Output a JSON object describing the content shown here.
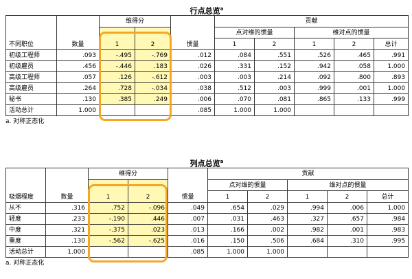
{
  "row_table": {
    "title": "行点总览",
    "title_sup": "a",
    "header": {
      "row_var": "不同职位",
      "mass": "数量",
      "score_group": "维得分",
      "dim1": "1",
      "dim2": "2",
      "inertia": "惯量",
      "contribution_group": "贡献",
      "point_to_dim": "点对维的惯量",
      "dim_to_point": "维对点的惯量",
      "total": "总计"
    },
    "rows": [
      {
        "label": "初级工程师",
        "mass": ".093",
        "s1": "-.495",
        "s2": "-.769",
        "inertia": ".012",
        "p1": ".084",
        "p2": ".551",
        "d1": ".526",
        "d2": ".465",
        "total": ".991"
      },
      {
        "label": "初级雇员",
        "mass": ".456",
        "s1": "-.446",
        "s2": ".183",
        "inertia": ".026",
        "p1": ".331",
        "p2": ".152",
        "d1": ".942",
        "d2": ".058",
        "total": "1.000"
      },
      {
        "label": "高级工程师",
        "mass": ".057",
        "s1": ".126",
        "s2": "-.612",
        "inertia": ".003",
        "p1": ".003",
        "p2": ".214",
        "d1": ".092",
        "d2": ".800",
        "total": ".893"
      },
      {
        "label": "高级雇员",
        "mass": ".264",
        "s1": ".728",
        "s2": "-.034",
        "inertia": ".038",
        "p1": ".512",
        "p2": ".003",
        "d1": ".999",
        "d2": ".001",
        "total": "1.000"
      },
      {
        "label": "秘书",
        "mass": ".130",
        "s1": ".385",
        "s2": ".249",
        "inertia": ".006",
        "p1": ".070",
        "p2": ".081",
        "d1": ".865",
        "d2": ".133",
        "total": ".999"
      },
      {
        "label": "活动总计",
        "mass": "1.000",
        "s1": "",
        "s2": "",
        "inertia": ".085",
        "p1": "1.000",
        "p2": "1.000",
        "d1": "",
        "d2": "",
        "total": ""
      }
    ],
    "footnote": "a. 对称正态化"
  },
  "col_table": {
    "title": "列点总览",
    "title_sup": "a",
    "header": {
      "row_var": "吸烟程度",
      "mass": "数量",
      "score_group": "维得分",
      "dim1": "1",
      "dim2": "2",
      "inertia": "惯量",
      "contribution_group": "贡献",
      "point_to_dim": "点对维的惯量",
      "dim_to_point": "维对点的惯量",
      "total": "总计"
    },
    "rows": [
      {
        "label": "从不",
        "mass": ".316",
        "s1": ".752",
        "s2": "-.096",
        "inertia": ".049",
        "p1": ".654",
        "p2": ".029",
        "d1": ".994",
        "d2": ".006",
        "total": "1.000"
      },
      {
        "label": "轻度",
        "mass": ".233",
        "s1": "-.190",
        "s2": ".446",
        "inertia": ".007",
        "p1": ".031",
        "p2": ".463",
        "d1": ".327",
        "d2": ".657",
        "total": ".984"
      },
      {
        "label": "中度",
        "mass": ".321",
        "s1": "-.375",
        "s2": ".023",
        "inertia": ".013",
        "p1": ".166",
        "p2": ".002",
        "d1": ".982",
        "d2": ".001",
        "total": ".983"
      },
      {
        "label": "重度",
        "mass": ".130",
        "s1": "-.562",
        "s2": "-.625",
        "inertia": ".016",
        "p1": ".150",
        "p2": ".506",
        "d1": ".684",
        "d2": ".310",
        "total": ".995"
      },
      {
        "label": "活动总计",
        "mass": "1.000",
        "s1": "",
        "s2": "",
        "inertia": ".085",
        "p1": "1.000",
        "p2": "1.000",
        "d1": "",
        "d2": "",
        "total": ""
      }
    ],
    "footnote": "a. 对称正态化"
  },
  "highlight_color": "#f5a623",
  "highlight_fill": "#fff9b5"
}
